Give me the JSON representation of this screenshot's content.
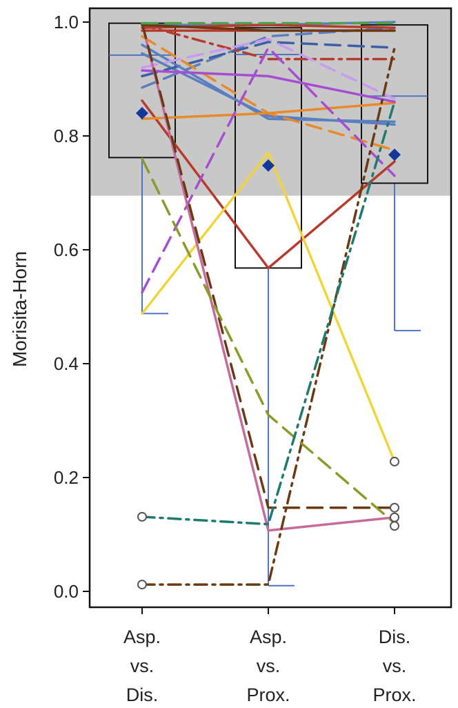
{
  "chart_data": {
    "type": "box",
    "ylabel": "Morisita-Horn",
    "ylim": [
      0,
      1
    ],
    "yticks": [
      "0.0",
      "0.2",
      "0.4",
      "0.6",
      "0.8",
      "1.0"
    ],
    "categories": [
      {
        "id": "asp_dis",
        "lines": [
          "Asp.",
          "vs.",
          "Dis."
        ]
      },
      {
        "id": "asp_prox",
        "lines": [
          "Asp.",
          "vs.",
          "Prox."
        ]
      },
      {
        "id": "dis_prox",
        "lines": [
          "Dis.",
          "vs.",
          "Prox."
        ]
      }
    ],
    "highlight_band": {
      "from": 0.695,
      "to": 1.0,
      "color": "#c8c8c8"
    },
    "boxes": [
      {
        "category": "asp_dis",
        "q1": 0.762,
        "median": 0.942,
        "q3": 0.998,
        "whisker_low": 0.488,
        "whisker_high": 0.998,
        "mean": 0.84
      },
      {
        "category": "asp_prox",
        "q1": 0.568,
        "median": 0.943,
        "q3": 0.99,
        "whisker_low": 0.01,
        "whisker_high": 0.99,
        "mean": 0.748
      },
      {
        "category": "dis_prox",
        "q1": 0.717,
        "median": 0.87,
        "q3": 0.995,
        "whisker_low": 0.458,
        "whisker_high": 0.995,
        "mean": 0.767
      }
    ],
    "outliers": [
      {
        "category": "asp_dis",
        "value": 0.131
      },
      {
        "category": "asp_dis",
        "value": 0.012
      },
      {
        "category": "dis_prox",
        "value": 0.228
      },
      {
        "category": "dis_prox",
        "value": 0.147
      },
      {
        "category": "dis_prox",
        "value": 0.13
      },
      {
        "category": "dis_prox",
        "value": 0.115
      }
    ],
    "series": [
      {
        "color": "#5b7fbe",
        "dash": "solid",
        "values": [
          0.945,
          0.835,
          0.82
        ]
      },
      {
        "color": "#5b7fbe",
        "dash": "long",
        "values": [
          0.885,
          0.975,
          0.99
        ]
      },
      {
        "color": "#3c5fa8",
        "dash": "long",
        "values": [
          0.905,
          0.965,
          0.955
        ]
      },
      {
        "color": "#5b7fbe",
        "dash": "solid",
        "values": [
          0.995,
          0.995,
          1.0
        ]
      },
      {
        "color": "#5b7fbe",
        "dash": "solid",
        "values": [
          0.96,
          0.83,
          0.825
        ]
      },
      {
        "color": "#b73a2c",
        "dash": "solid",
        "values": [
          0.862,
          0.568,
          0.755
        ]
      },
      {
        "color": "#b73a2c",
        "dash": "solid",
        "values": [
          0.99,
          0.995,
          0.99
        ]
      },
      {
        "color": "#b73a2c",
        "dash": "dashdot",
        "values": [
          0.995,
          0.935,
          0.935
        ]
      },
      {
        "color": "#b73a2c",
        "dash": "solid",
        "values": [
          0.985,
          0.985,
          0.985
        ]
      },
      {
        "color": "#e8892a",
        "dash": "solid",
        "values": [
          0.83,
          0.84,
          0.858
        ]
      },
      {
        "color": "#e8892a",
        "dash": "long",
        "values": [
          0.975,
          0.84,
          0.775
        ]
      },
      {
        "color": "#f2d43a",
        "dash": "solid",
        "values": [
          0.488,
          0.77,
          0.228
        ]
      },
      {
        "color": "#a64ed1",
        "dash": "solid",
        "values": [
          0.915,
          0.905,
          0.86
        ]
      },
      {
        "color": "#a64ed1",
        "dash": "long",
        "values": [
          0.525,
          0.955,
          0.73
        ]
      },
      {
        "color": "#c79bf0",
        "dash": "long",
        "values": [
          0.92,
          0.97,
          0.865
        ]
      },
      {
        "color": "#c46b9a",
        "dash": "solid",
        "values": [
          0.998,
          0.107,
          0.13
        ]
      },
      {
        "color": "#6b3a12",
        "dash": "long",
        "values": [
          0.998,
          0.147,
          0.147
        ]
      },
      {
        "color": "#6b3a12",
        "dash": "dashdot",
        "values": [
          0.012,
          0.012,
          0.955
        ]
      },
      {
        "color": "#6b3a12",
        "dash": "solid",
        "values": [
          0.995,
          0.985,
          0.985
        ]
      },
      {
        "color": "#8c9a2a",
        "dash": "long",
        "values": [
          0.76,
          0.31,
          0.12
        ]
      },
      {
        "color": "#4aa34a",
        "dash": "long",
        "values": [
          0.998,
          0.998,
          0.998
        ]
      },
      {
        "color": "#1f7a6e",
        "dash": "dashdot",
        "values": [
          0.131,
          0.118,
          0.86
        ]
      }
    ],
    "colors": {
      "box_stroke": "#111111",
      "whisker": "#4f74c6",
      "mean_marker": "#14389a",
      "outlier_stroke": "#555555",
      "axis": "#111111"
    }
  }
}
